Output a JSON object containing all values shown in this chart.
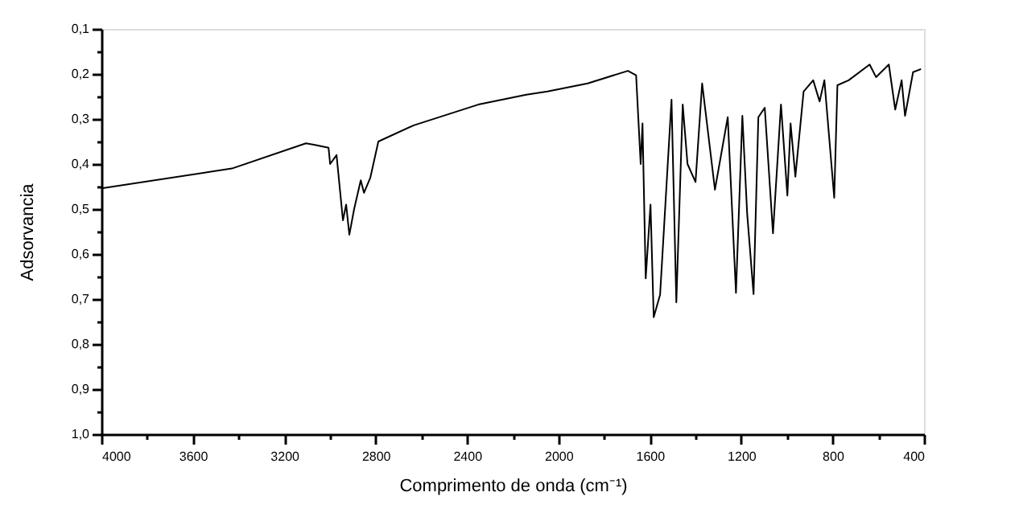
{
  "chart_data": {
    "type": "line",
    "xlabel": "Comprimento de onda (cm⁻¹)",
    "ylabel": "Adsorvancia",
    "x": [
      4000,
      3429,
      3105,
      3070,
      3006,
      2999,
      2971,
      2943,
      2929,
      2915,
      2894,
      2865,
      2851,
      2823,
      2788,
      2633,
      2351,
      2140,
      2048,
      1872,
      1696,
      1660,
      1640,
      1632,
      1618,
      1597,
      1583,
      1555,
      1505,
      1484,
      1456,
      1435,
      1400,
      1371,
      1315,
      1259,
      1223,
      1195,
      1174,
      1146,
      1125,
      1097,
      1061,
      1026,
      998,
      984,
      963,
      927,
      885,
      857,
      836,
      793,
      779,
      730,
      638,
      610,
      554,
      526,
      498,
      483,
      448,
      413
    ],
    "series": [
      {
        "color": "#000000",
        "values": [
          0.454,
          0.41,
          0.354,
          0.357,
          0.364,
          0.4,
          0.38,
          0.525,
          0.49,
          0.557,
          0.5,
          0.436,
          0.464,
          0.43,
          0.35,
          0.314,
          0.268,
          0.246,
          0.239,
          0.221,
          0.193,
          0.203,
          0.4,
          0.31,
          0.654,
          0.49,
          0.74,
          0.69,
          0.257,
          0.707,
          0.268,
          0.4,
          0.44,
          0.221,
          0.457,
          0.296,
          0.686,
          0.293,
          0.51,
          0.689,
          0.296,
          0.275,
          0.554,
          0.268,
          0.47,
          0.31,
          0.428,
          0.239,
          0.214,
          0.261,
          0.214,
          0.475,
          0.225,
          0.214,
          0.179,
          0.207,
          0.179,
          0.279,
          0.214,
          0.293,
          0.196,
          0.189
        ]
      }
    ],
    "xlim": [
      4000,
      400
    ],
    "xticks": [
      4000,
      {
        "value": 3800,
        "label": null
      },
      3600,
      {
        "value": 3400,
        "label": null
      },
      3200,
      {
        "value": 3000,
        "label": null
      },
      2800,
      {
        "value": 2600,
        "label": null
      },
      2400,
      {
        "value": 2200,
        "label": null
      },
      2000,
      {
        "value": 1800,
        "label": null
      },
      1600,
      {
        "value": 1400,
        "label": null
      },
      1200,
      {
        "value": 1000,
        "label": null
      },
      800,
      {
        "value": 600,
        "label": null
      },
      400
    ],
    "ylim": [
      1.0,
      0.1
    ],
    "yticks": [
      {
        "value": 0.1,
        "label": "0,1"
      },
      {
        "value": 0.15,
        "label": null
      },
      {
        "value": 0.2,
        "label": "0,2"
      },
      {
        "value": 0.25,
        "label": null
      },
      {
        "value": 0.3,
        "label": "0,3"
      },
      {
        "value": 0.35,
        "label": null
      },
      {
        "value": 0.4,
        "label": "0,4"
      },
      {
        "value": 0.45,
        "label": null
      },
      {
        "value": 0.5,
        "label": "0,5"
      },
      {
        "value": 0.55,
        "label": null
      },
      {
        "value": 0.6,
        "label": "0,6"
      },
      {
        "value": 0.65,
        "label": null
      },
      {
        "value": 0.7,
        "label": "0,7"
      },
      {
        "value": 0.75,
        "label": null
      },
      {
        "value": 0.8,
        "label": "0,8"
      },
      {
        "value": 0.85,
        "label": null
      },
      {
        "value": 0.9,
        "label": "0,9"
      },
      {
        "value": 0.95,
        "label": null
      },
      {
        "value": 1.0,
        "label": "1,0"
      }
    ],
    "grid": false,
    "legend": false,
    "marker": "none",
    "line_style": "solid"
  }
}
